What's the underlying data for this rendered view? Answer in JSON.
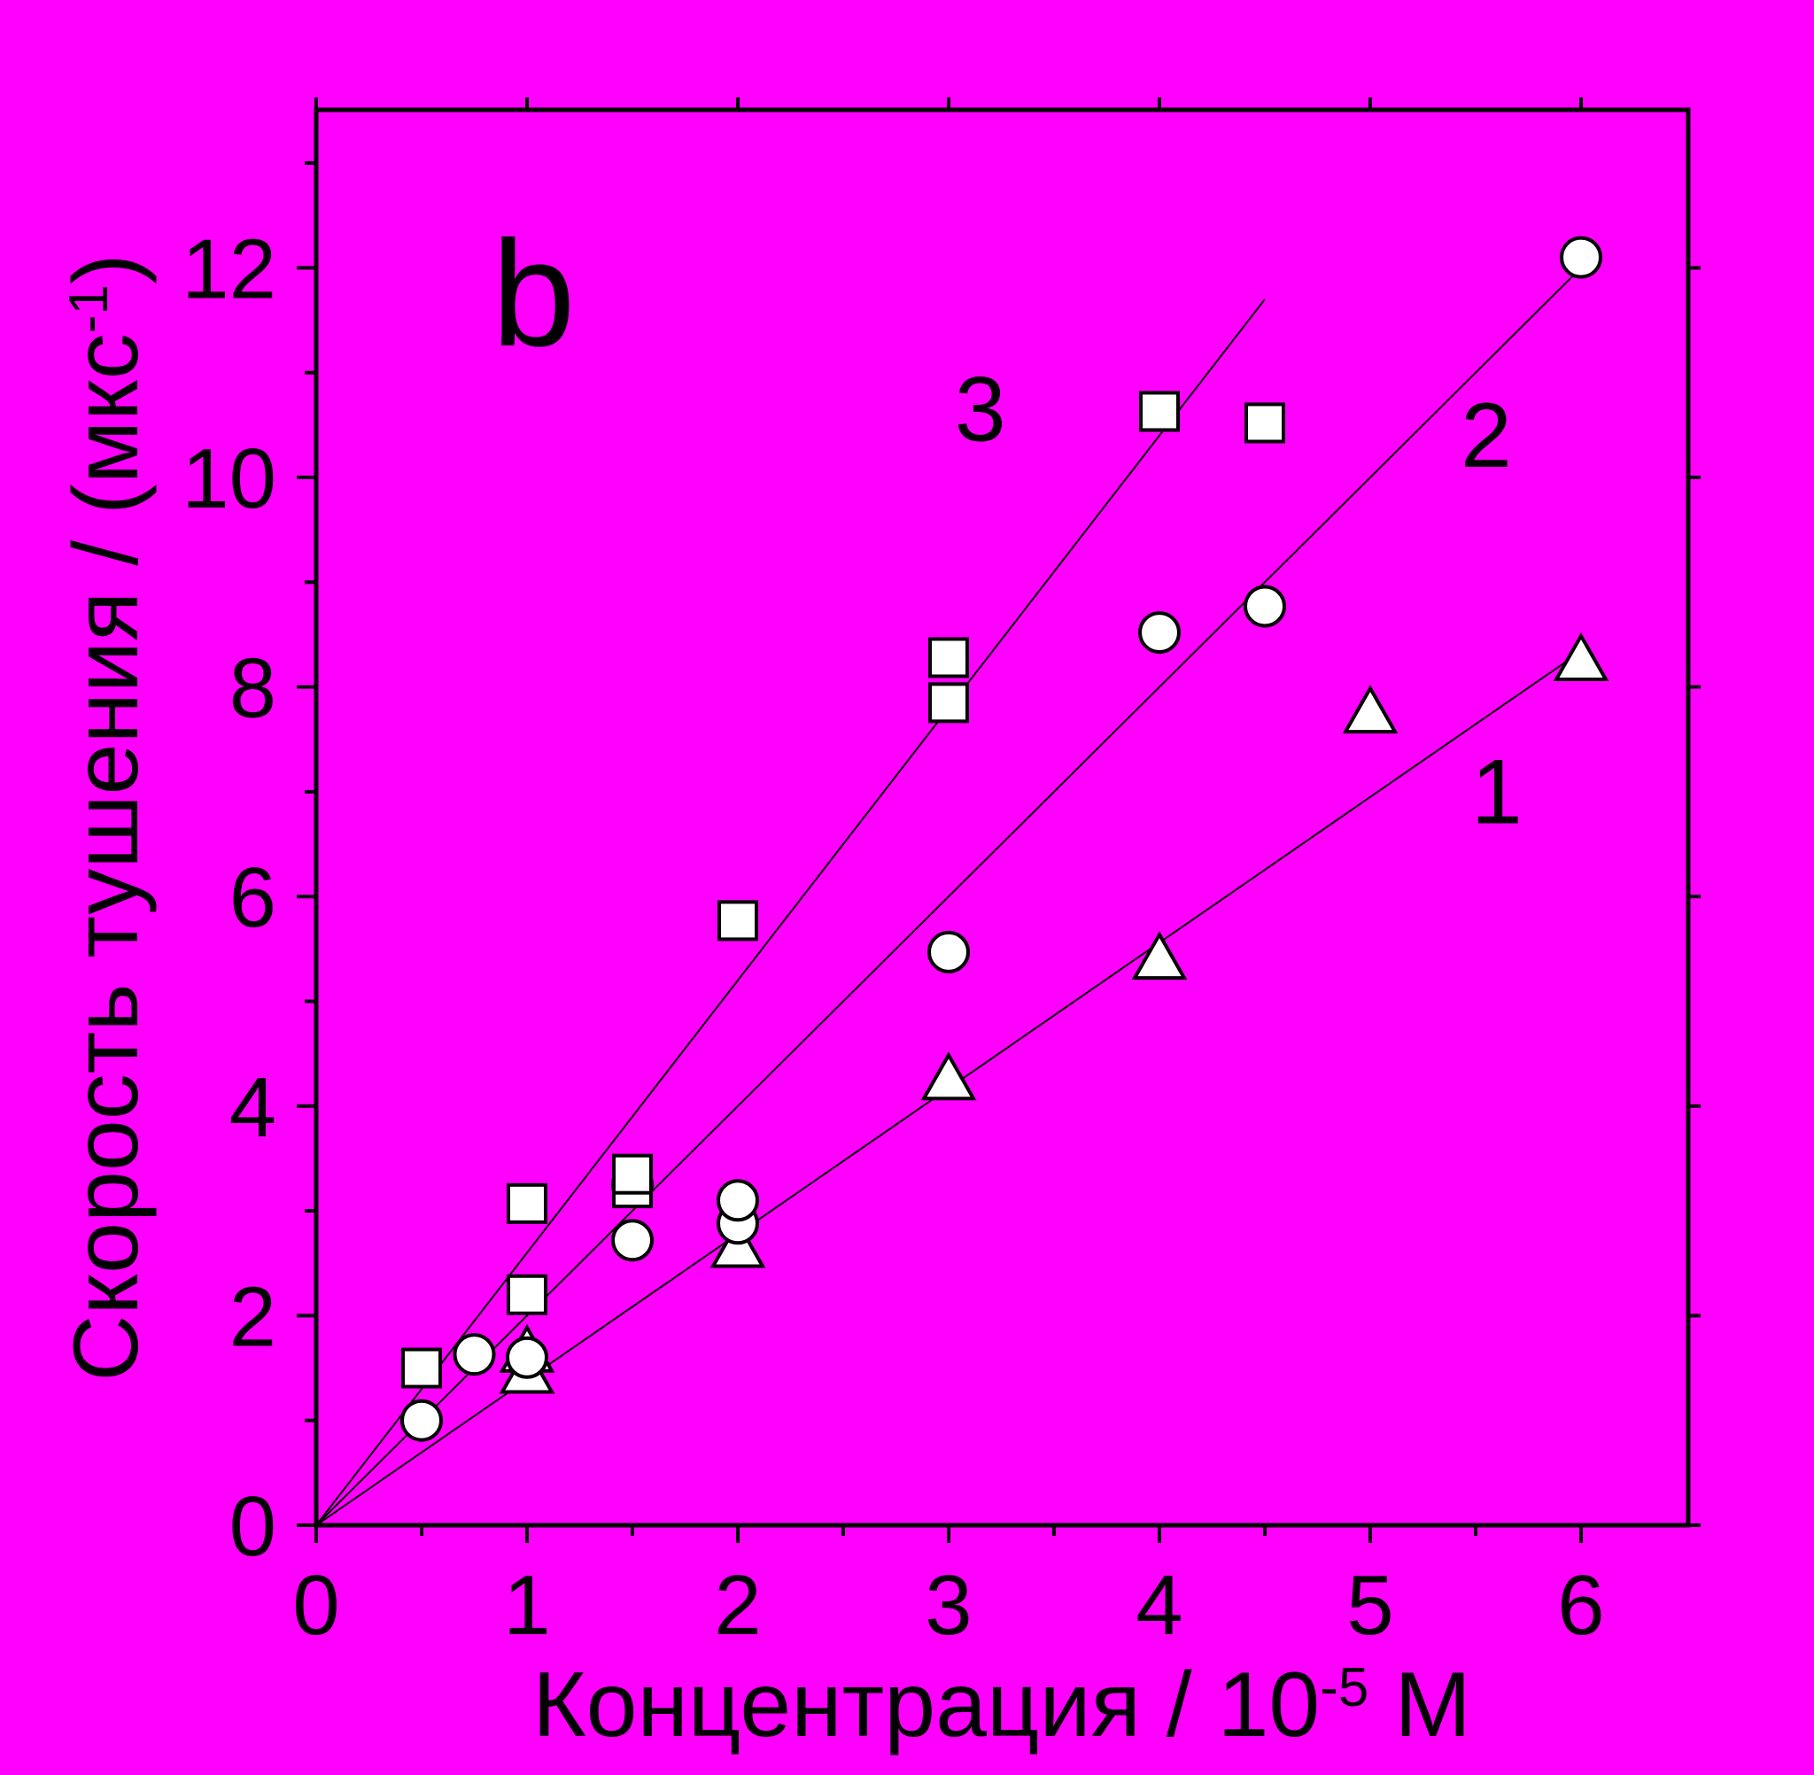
{
  "chart_data": {
    "type": "scatter",
    "panel_label": "b",
    "xlabel": {
      "prefix": "Концентрация / 10",
      "exp": "-5",
      "suffix": " М"
    },
    "ylabel": {
      "prefix": "Скорость тушения / (мкс",
      "exp": "-1",
      "suffix": ")"
    },
    "xlim": [
      0,
      6.5
    ],
    "ylim": [
      0,
      13.5
    ],
    "xticks": [
      0,
      1,
      2,
      3,
      4,
      5,
      6
    ],
    "xticks_minor": [
      0.5,
      1.5,
      2.5,
      3.5,
      4.5,
      5.5
    ],
    "yticks": [
      0,
      2,
      4,
      6,
      8,
      10,
      12
    ],
    "yticks_minor": [
      1,
      3,
      5,
      7,
      9,
      11,
      13
    ],
    "grid": false,
    "series": [
      {
        "id": "1",
        "label": "1",
        "marker": "triangle",
        "points": [
          [
            1,
            1.45
          ],
          [
            1,
            1.65
          ],
          [
            2,
            2.65
          ],
          [
            3,
            4.25
          ],
          [
            4,
            5.4
          ],
          [
            5,
            7.75
          ],
          [
            6,
            8.25
          ]
        ],
        "fit": {
          "slope": 1.39,
          "x_end": 6
        }
      },
      {
        "id": "2",
        "label": "2",
        "marker": "circle",
        "points": [
          [
            0.5,
            1.0
          ],
          [
            0.75,
            1.63
          ],
          [
            1,
            1.6
          ],
          [
            1.5,
            2.72
          ],
          [
            1.5,
            3.25
          ],
          [
            2,
            2.88
          ],
          [
            2,
            3.1
          ],
          [
            3,
            5.47
          ],
          [
            4,
            8.52
          ],
          [
            4.5,
            8.77
          ],
          [
            6,
            12.1
          ]
        ],
        "fit": {
          "slope": 2.0,
          "x_end": 6
        }
      },
      {
        "id": "3",
        "label": "3",
        "marker": "square",
        "points": [
          [
            0.5,
            1.5
          ],
          [
            1,
            2.2
          ],
          [
            1,
            3.07
          ],
          [
            1.5,
            3.22
          ],
          [
            1.5,
            3.35
          ],
          [
            2,
            5.77
          ],
          [
            3,
            7.85
          ],
          [
            3,
            8.28
          ],
          [
            4,
            10.63
          ],
          [
            4.5,
            10.52
          ]
        ],
        "fit": {
          "slope": 2.6,
          "x_end": 4.5
        }
      }
    ],
    "annotations": [
      {
        "text": "3",
        "x": 3.15,
        "y": 10.35
      },
      {
        "text": "2",
        "x": 5.55,
        "y": 10.1
      },
      {
        "text": "1",
        "x": 5.6,
        "y": 6.7
      }
    ]
  }
}
